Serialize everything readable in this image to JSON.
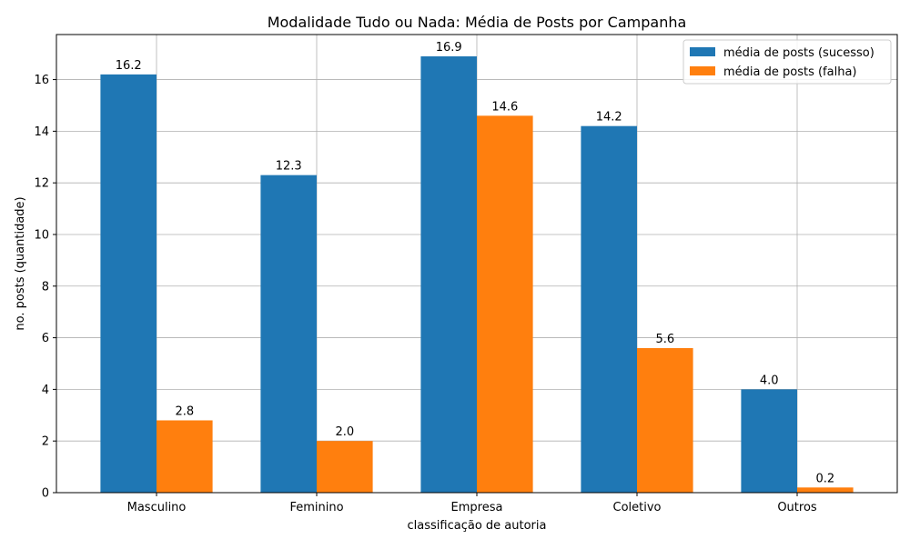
{
  "chart_data": {
    "type": "bar",
    "title": "Modalidade Tudo ou Nada: Média de Posts por Campanha",
    "xlabel": "classificação de autoria",
    "ylabel": "no. posts (quantidade)",
    "categories": [
      "Masculino",
      "Feminino",
      "Empresa",
      "Coletivo",
      "Outros"
    ],
    "series": [
      {
        "name": "média de posts (sucesso)",
        "values": [
          16.2,
          12.3,
          16.9,
          14.2,
          4.0
        ],
        "labels": [
          "16.2",
          "12.3",
          "16.9",
          "14.2",
          "4.0"
        ],
        "color": "#1f77b4"
      },
      {
        "name": "média de posts (falha)",
        "values": [
          2.8,
          2.0,
          14.6,
          5.6,
          0.2
        ],
        "labels": [
          "2.8",
          "2.0",
          "14.6",
          "5.6",
          "0.2"
        ],
        "color": "#ff7f0e"
      }
    ],
    "ylim": [
      0,
      17.745
    ],
    "yticks": [
      0,
      2,
      4,
      6,
      8,
      10,
      12,
      14,
      16
    ],
    "ytick_labels": [
      "0",
      "2",
      "4",
      "6",
      "8",
      "10",
      "12",
      "14",
      "16"
    ],
    "grid": true,
    "legend_position": "top-right"
  }
}
